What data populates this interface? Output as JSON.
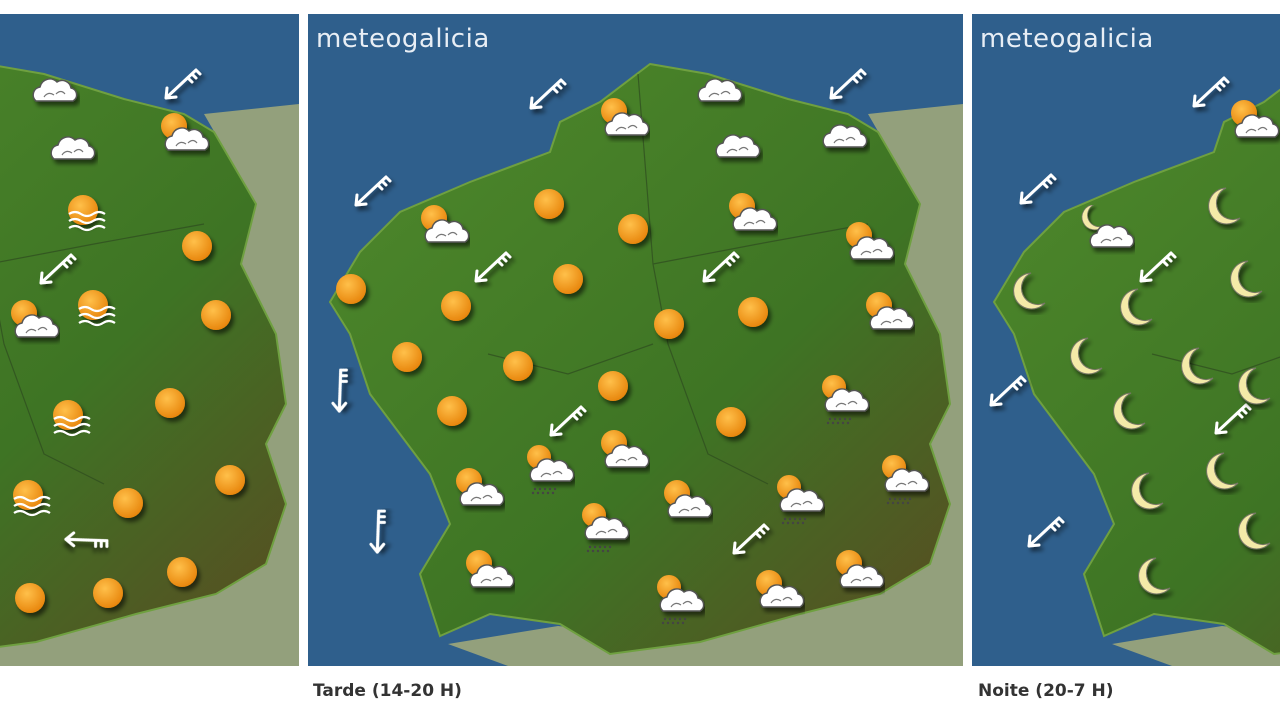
{
  "brand": "meteogalicia",
  "colors": {
    "ocean": "#2f5f8c",
    "land": "#437a26",
    "neighbor_land": "#93a07c",
    "sun": "#f39a1e",
    "cloud": "#ffffff"
  },
  "panels": [
    {
      "id": "morning",
      "label": "",
      "symbols": [
        "cloud",
        "cloud",
        "sun-cloud",
        "sun-cloud",
        "wind-sw",
        "wind-sw",
        "wind-w",
        "fog",
        "fog",
        "fog",
        "fog",
        "sun",
        "sun",
        "sun",
        "sun",
        "sun",
        "sun",
        "sun",
        "sun"
      ]
    },
    {
      "id": "afternoon",
      "label": "Tarde (14-20 H)",
      "symbols": [
        "wind-sw",
        "wind-sw",
        "wind-sw",
        "wind-sw",
        "wind-sw",
        "wind-s",
        "wind-s",
        "wind-sw",
        "wind-sw",
        "sun-cloud",
        "sun-cloud",
        "sun-cloud",
        "sun-cloud",
        "sun-cloud",
        "sun-rain",
        "sun-cloud",
        "sun-rain",
        "sun-cloud",
        "sun-rain",
        "sun-cloud",
        "sun-rain",
        "sun-rain",
        "sun-cloud",
        "sun-cloud",
        "sun-rain",
        "sun-cloud",
        "cloud",
        "cloud",
        "cloud",
        "sun",
        "sun",
        "sun",
        "sun",
        "sun",
        "sun",
        "sun",
        "sun",
        "sun",
        "sun",
        "sun",
        "sun"
      ]
    },
    {
      "id": "night",
      "label": "Noite (20-7 H)",
      "symbols": [
        "wind-sw",
        "wind-sw",
        "wind-sw",
        "wind-sw",
        "wind-sw",
        "wind-sw",
        "sun-cloud",
        "moon-cloud",
        "moon",
        "moon",
        "moon",
        "moon",
        "moon",
        "moon",
        "moon",
        "moon",
        "moon",
        "moon",
        "moon",
        "moon"
      ]
    }
  ]
}
